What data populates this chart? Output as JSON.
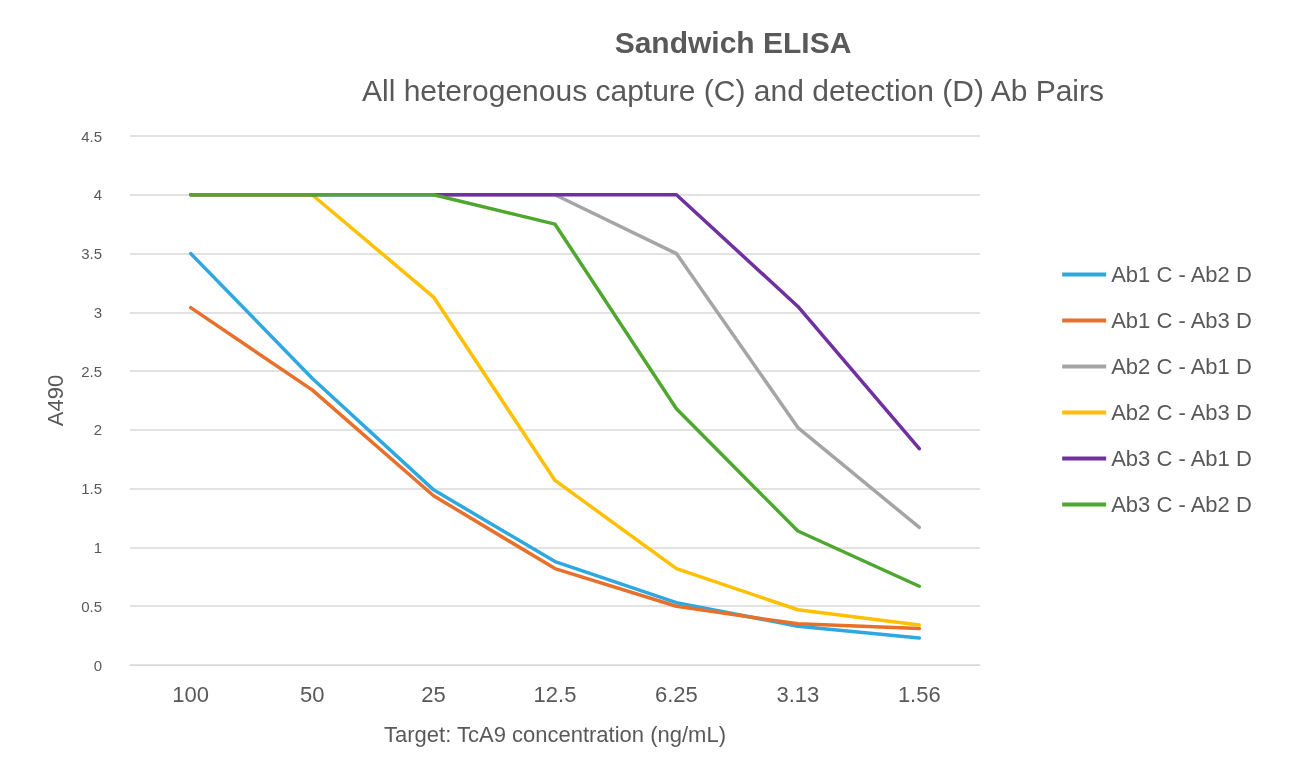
{
  "chart_data": {
    "type": "line",
    "title": "Sandwich ELISA",
    "subtitle": "All heterogenous capture (C) and detection (D) Ab Pairs",
    "xlabel": "Target: TcA9 concentration (ng/mL)",
    "ylabel": "A490",
    "categories": [
      "100",
      "50",
      "25",
      "12.5",
      "6.25",
      "3.13",
      "1.56"
    ],
    "series": [
      {
        "name": "Ab1 C - Ab2 D",
        "color": "#2ea8df",
        "values": [
          3.5,
          2.44,
          1.49,
          0.88,
          0.53,
          0.33,
          0.23
        ]
      },
      {
        "name": "Ab1 C - Ab3 D",
        "color": "#e8702a",
        "values": [
          3.04,
          2.34,
          1.44,
          0.82,
          0.5,
          0.35,
          0.31
        ]
      },
      {
        "name": "Ab2 C - Ab1 D",
        "color": "#a5a5a5",
        "values": [
          null,
          null,
          4,
          4,
          3.5,
          2.02,
          1.17
        ]
      },
      {
        "name": "Ab2 C - Ab3 D",
        "color": "#ffc000",
        "values": [
          4,
          4,
          3.13,
          1.57,
          0.82,
          0.47,
          0.34
        ]
      },
      {
        "name": "Ab3 C - Ab1 D",
        "color": "#7030a0",
        "values": [
          4,
          4,
          4,
          4,
          4,
          3.05,
          1.84
        ]
      },
      {
        "name": "Ab3 C - Ab2 D",
        "color": "#4ea72e",
        "values": [
          4,
          4,
          4,
          3.75,
          2.18,
          1.14,
          0.67
        ]
      }
    ],
    "ylim": [
      0,
      4.5
    ],
    "yticks": [
      0,
      0.5,
      1,
      1.5,
      2,
      2.5,
      3,
      3.5,
      4,
      4.5
    ],
    "grid": "y",
    "legend": "right",
    "marker": "none",
    "line_style": "solid"
  }
}
